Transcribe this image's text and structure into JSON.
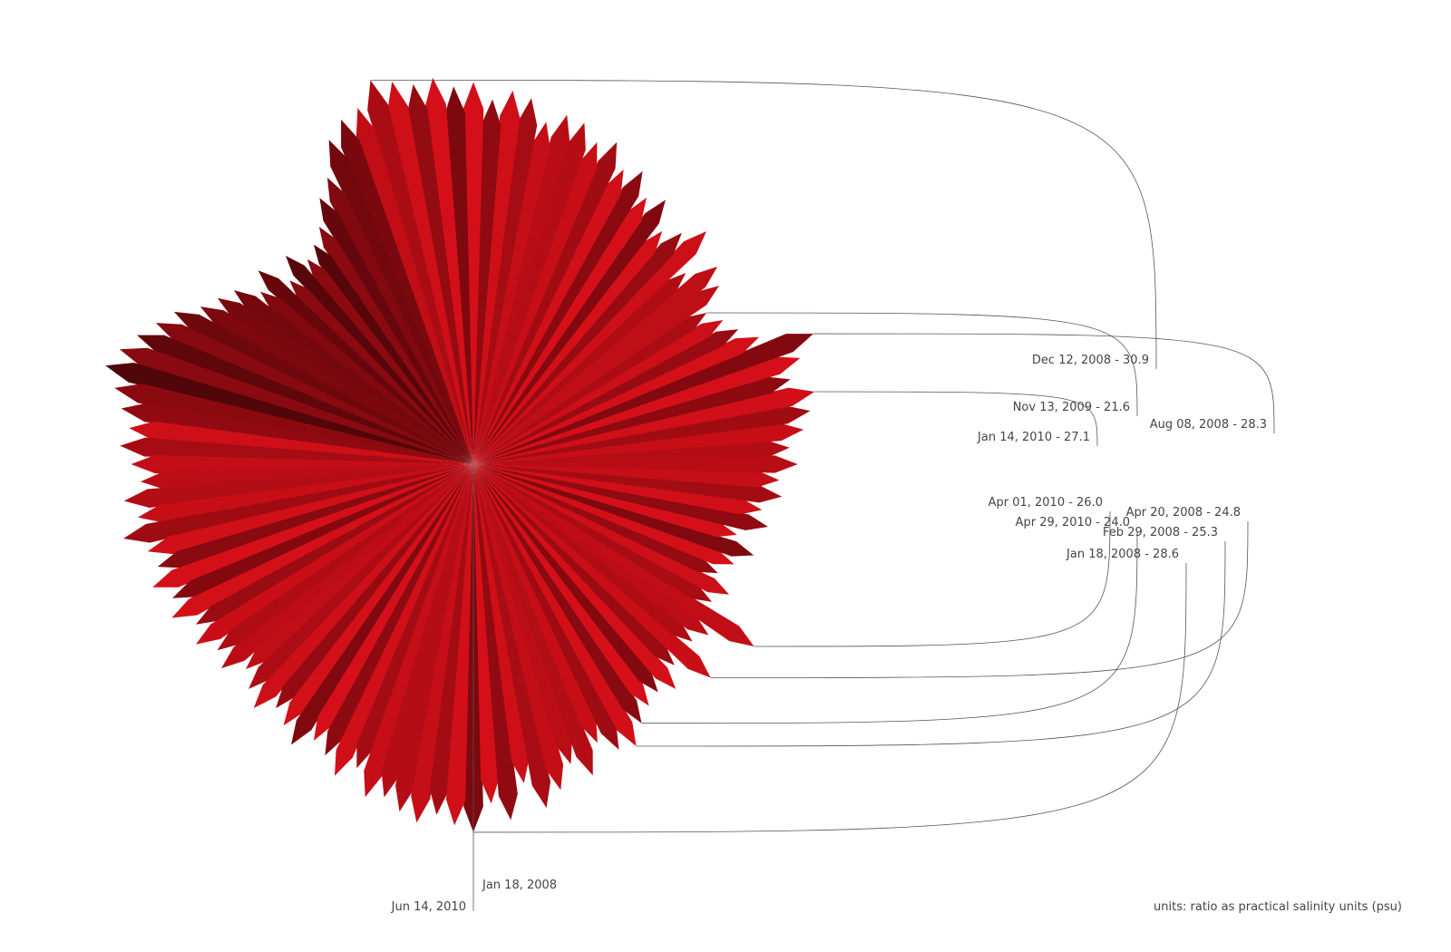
{
  "chart_data": {
    "type": "radial",
    "x_start": "Jan 18, 2008",
    "x_end": "Jun 14, 2010",
    "color": "#e0101a",
    "rlim": [
      0,
      31
    ],
    "values": [
      28.6,
      26.4,
      27.8,
      25.1,
      27.3,
      26.2,
      24.5,
      25.9,
      23.7,
      24.9,
      25.3,
      24.0,
      23.2,
      22.8,
      23.5,
      22.1,
      24.8,
      21.9,
      22.6,
      26.0,
      21.4,
      22.3,
      20.8,
      21.7,
      22.9,
      21.2,
      23.4,
      22.7,
      24.1,
      23.8,
      25.2,
      24.6,
      25.8,
      26.5,
      27.1,
      25.5,
      26.7,
      28.3,
      24.3,
      23.1,
      22.4,
      21.6,
      23.6,
      24.4,
      22.2,
      25.6,
      24.2,
      23.3,
      25.4,
      24.7,
      26.3,
      25.7,
      27.4,
      26.8,
      27.9,
      28.1,
      27.2,
      28.8,
      29.2,
      28.4,
      29.7,
      29.4,
      30.2,
      29.9,
      30.4,
      30.9,
      29.1,
      28.7,
      27.6,
      25.0,
      23.9,
      22.0,
      21.1,
      20.5,
      21.8,
      20.2,
      22.5,
      21.3,
      23.0,
      23.7,
      24.5,
      26.1,
      27.0,
      28.0,
      28.9,
      29.6,
      28.5,
      27.7,
      26.9,
      27.5,
      26.6,
      25.9,
      27.3,
      26.4,
      27.8,
      26.2,
      25.8,
      26.7,
      25.6,
      26.3,
      24.9,
      25.7,
      24.6,
      25.2,
      23.8,
      24.7,
      25.5,
      24.4,
      25.1,
      26.0,
      24.8,
      25.4,
      26.5,
      25.3,
      27.2,
      26.8,
      27.6,
      28.2,
      27.4,
      28.1
    ],
    "annotations": [
      {
        "label": "Dec 12, 2008 - 30.9",
        "value": 30.9
      },
      {
        "label": "Nov 13, 2009 - 21.6",
        "value": 21.6
      },
      {
        "label": "Aug 08, 2008 - 28.3",
        "value": 28.3
      },
      {
        "label": "Jan 14, 2010 - 27.1",
        "value": 27.1
      },
      {
        "label": "Apr 01, 2010 - 26.0",
        "value": 26.0
      },
      {
        "label": "Apr 20, 2008 - 24.8",
        "value": 24.8
      },
      {
        "label": "Apr 29, 2010 - 24.0",
        "value": 24.0
      },
      {
        "label": "Feb 29, 2008 - 25.3",
        "value": 25.3
      },
      {
        "label": "Jan 18, 2008 - 28.6",
        "value": 28.6
      }
    ],
    "note": "units: ratio as practical salinity units (psu)"
  }
}
